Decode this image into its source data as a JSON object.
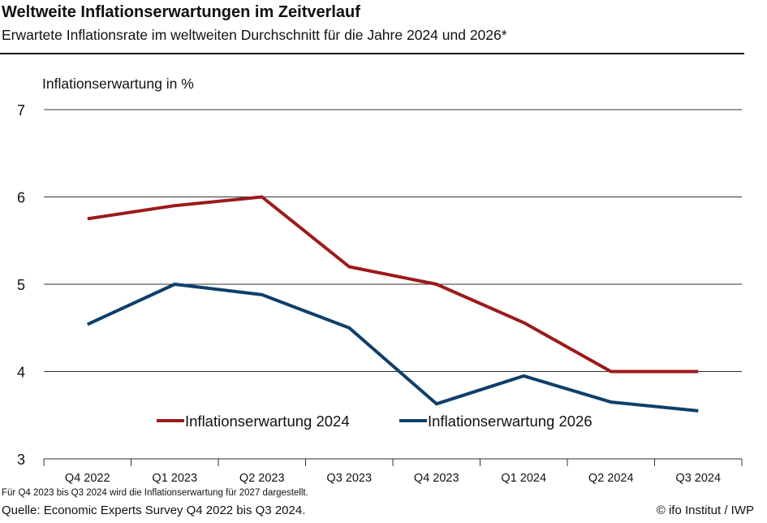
{
  "header": {
    "title": "Weltweite Inflationserwartungen im Zeitverlauf",
    "subtitle": "Erwartete Inflationsrate im weltweiten Durchschnitt für die Jahre 2024 und 2026*"
  },
  "footer": {
    "footnote": "Für Q4 2023 bis Q3 2024 wird die Inflationserwartung für 2027 dargestellt.",
    "source": "Quelle: Economic Experts Survey Q4 2022 bis Q3 2024.",
    "copyright": "© ifo Institut / IWP"
  },
  "chart_data": {
    "type": "line",
    "title": "Weltweite Inflationserwartungen im Zeitverlauf",
    "subtitle": "Erwartete Inflationsrate im weltweiten Durchschnitt für die Jahre 2024 und 2026*",
    "ylabel": "Inflationserwartung in %",
    "xlabel": "",
    "categories": [
      "Q4 2022",
      "Q1 2023",
      "Q2 2023",
      "Q3 2023",
      "Q4 2023",
      "Q1 2024",
      "Q2 2024",
      "Q3 2024"
    ],
    "ylim": [
      3,
      7
    ],
    "yticks": [
      3,
      4,
      5,
      6,
      7
    ],
    "grid": true,
    "legend_position": "bottom-center",
    "series": [
      {
        "name": "Inflationserwartung 2024",
        "color": "#9b1b1b",
        "values": [
          5.75,
          5.9,
          6.0,
          5.2,
          5.0,
          4.56,
          4.0,
          4.0
        ]
      },
      {
        "name": "Inflationserwartung 2026",
        "color": "#0e3f6b",
        "values": [
          4.54,
          5.0,
          4.88,
          4.5,
          3.63,
          3.95,
          3.65,
          3.55
        ]
      }
    ]
  }
}
